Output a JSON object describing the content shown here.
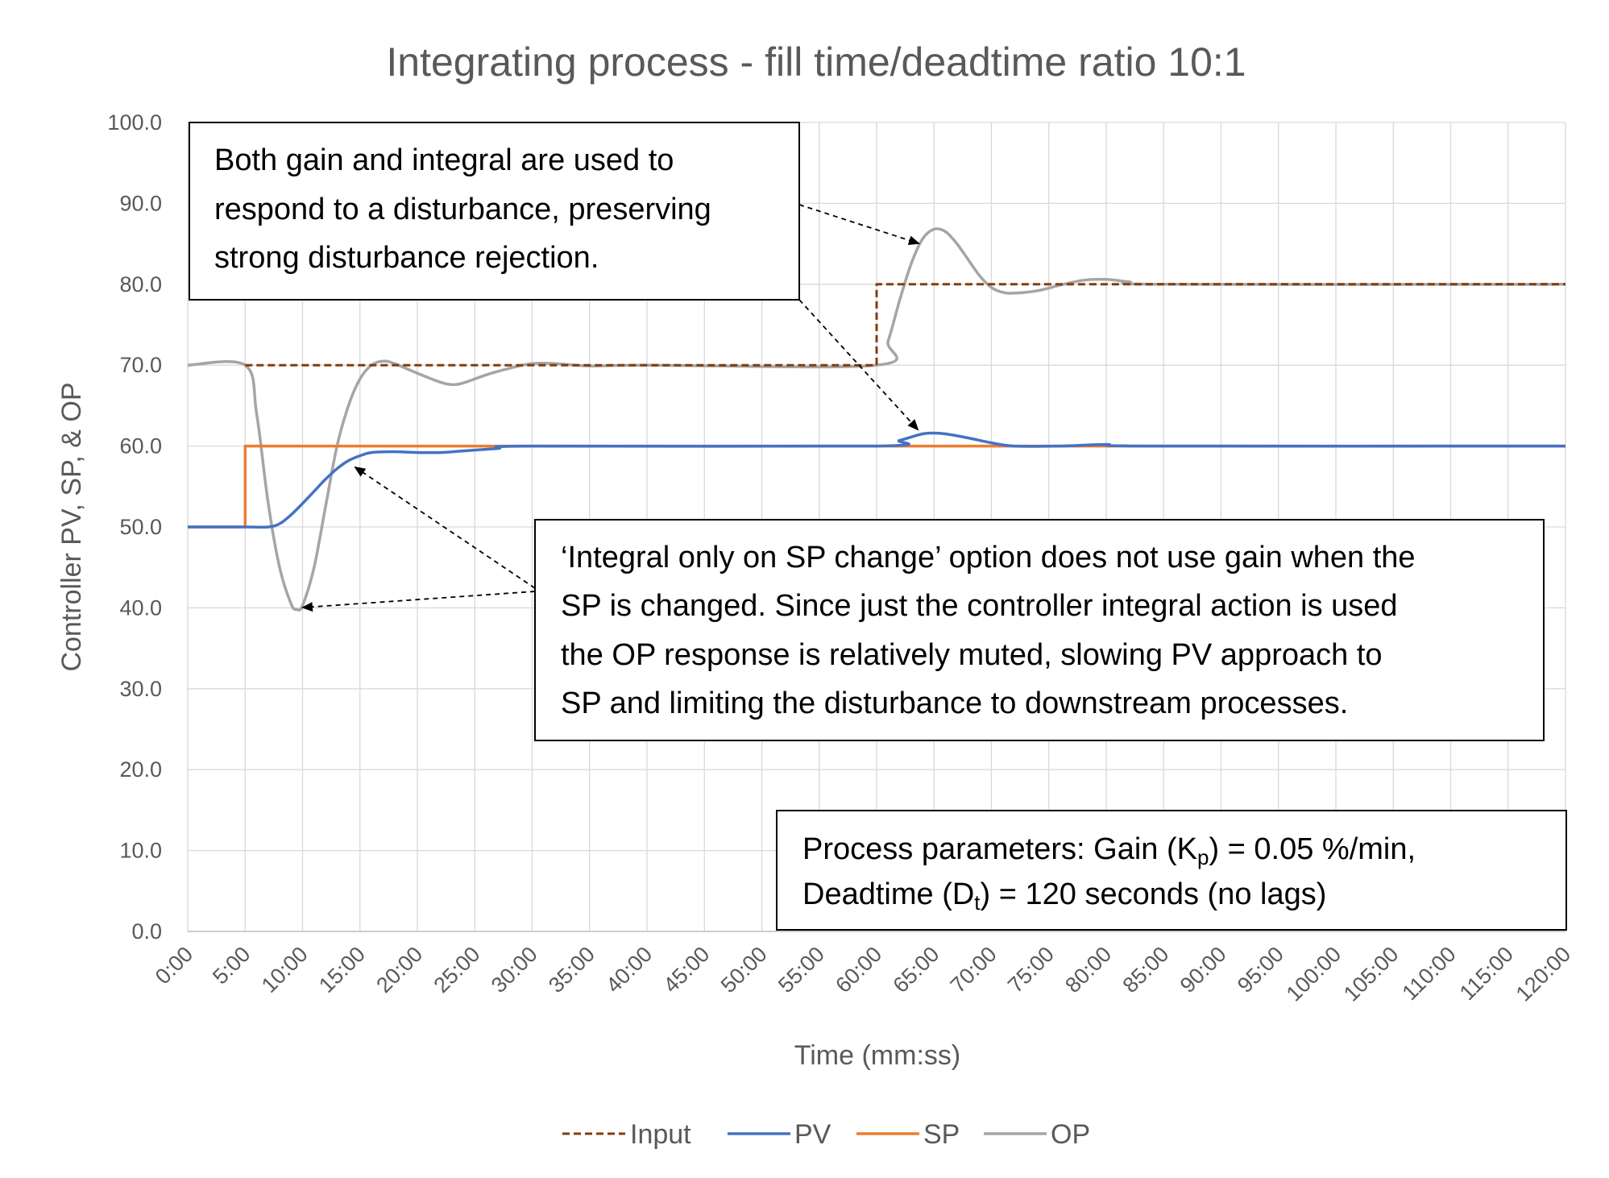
{
  "chart_data": {
    "type": "line",
    "title": "Integrating process - fill time/deadtime ratio 10:1",
    "xlabel": "Time (mm:ss)",
    "ylabel": "Controller PV, SP, & OP",
    "xlim": [
      0,
      120
    ],
    "ylim": [
      0,
      100
    ],
    "y_ticks": [
      "0.0",
      "10.0",
      "20.0",
      "30.0",
      "40.0",
      "50.0",
      "60.0",
      "70.0",
      "80.0",
      "90.0",
      "100.0"
    ],
    "x_tick_values": [
      0,
      5,
      10,
      15,
      20,
      25,
      30,
      35,
      40,
      45,
      50,
      55,
      60,
      65,
      70,
      75,
      80,
      85,
      90,
      95,
      100,
      105,
      110,
      115,
      120
    ],
    "x_ticks": [
      "0:00",
      "5:00",
      "10:00",
      "15:00",
      "20:00",
      "25:00",
      "30:00",
      "35:00",
      "40:00",
      "45:00",
      "50:00",
      "55:00",
      "60:00",
      "65:00",
      "70:00",
      "75:00",
      "80:00",
      "85:00",
      "90:00",
      "95:00",
      "100:00",
      "105:00",
      "110:00",
      "115:00",
      "120:00"
    ],
    "grid": true,
    "legend_position": "bottom",
    "series": [
      {
        "name": "Input",
        "color": "#843c0c",
        "dash": true,
        "points": [
          [
            5,
            70
          ],
          [
            60,
            70
          ],
          [
            60,
            80
          ],
          [
            120,
            80
          ]
        ]
      },
      {
        "name": "PV",
        "color": "#4472c4",
        "dash": false,
        "points": [
          [
            0,
            50
          ],
          [
            5,
            50
          ],
          [
            7,
            50
          ],
          [
            8,
            50.4
          ],
          [
            9,
            51.5
          ],
          [
            10,
            52.9
          ],
          [
            11,
            54.4
          ],
          [
            12,
            55.9
          ],
          [
            13,
            57.2
          ],
          [
            14,
            58.2
          ],
          [
            15,
            58.8
          ],
          [
            16,
            59.2
          ],
          [
            18,
            59.3
          ],
          [
            20,
            59.2
          ],
          [
            22,
            59.2
          ],
          [
            24,
            59.4
          ],
          [
            27,
            59.7
          ],
          [
            30,
            60
          ],
          [
            60,
            60
          ],
          [
            62,
            60.7
          ],
          [
            64,
            61.5
          ],
          [
            65,
            61.6
          ],
          [
            66,
            61.5
          ],
          [
            68,
            61
          ],
          [
            70,
            60.4
          ],
          [
            72,
            60
          ],
          [
            76,
            60
          ],
          [
            80,
            60.2
          ],
          [
            84,
            60
          ],
          [
            120,
            60
          ]
        ]
      },
      {
        "name": "SP",
        "color": "#ed7d31",
        "dash": false,
        "points": [
          [
            0,
            50
          ],
          [
            5,
            50
          ],
          [
            5,
            60
          ],
          [
            120,
            60
          ]
        ]
      },
      {
        "name": "OP",
        "color": "#a5a5a5",
        "dash": false,
        "points": [
          [
            0,
            70
          ],
          [
            5,
            70
          ],
          [
            6,
            64
          ],
          [
            7,
            53
          ],
          [
            8,
            45
          ],
          [
            9,
            40.5
          ],
          [
            9.5,
            39.8
          ],
          [
            10,
            40.3
          ],
          [
            11,
            45
          ],
          [
            12,
            52.5
          ],
          [
            13,
            60
          ],
          [
            14,
            65
          ],
          [
            15,
            68.3
          ],
          [
            16,
            70
          ],
          [
            17,
            70.5
          ],
          [
            18,
            70.2
          ],
          [
            20,
            69
          ],
          [
            22,
            67.9
          ],
          [
            23,
            67.6
          ],
          [
            24,
            67.8
          ],
          [
            26,
            68.8
          ],
          [
            28,
            69.6
          ],
          [
            30,
            70.2
          ],
          [
            32,
            70.2
          ],
          [
            35,
            69.9
          ],
          [
            40,
            70
          ],
          [
            60,
            70
          ],
          [
            61,
            73
          ],
          [
            62,
            78
          ],
          [
            63,
            82.5
          ],
          [
            64,
            85.6
          ],
          [
            65,
            86.8
          ],
          [
            66,
            86.5
          ],
          [
            67,
            85
          ],
          [
            68,
            83
          ],
          [
            69,
            81
          ],
          [
            70,
            79.6
          ],
          [
            71,
            79
          ],
          [
            72,
            78.9
          ],
          [
            74,
            79.2
          ],
          [
            76,
            79.9
          ],
          [
            78,
            80.5
          ],
          [
            80,
            80.6
          ],
          [
            82,
            80.3
          ],
          [
            85,
            80
          ],
          [
            120,
            80
          ]
        ]
      }
    ],
    "annotations": [
      {
        "lines": [
          "Both gain and integral are used to",
          "respond to a disturbance, preserving",
          "strong disturbance rejection."
        ]
      },
      {
        "lines": [
          "‘Integral only on SP change’ option does not use gain when the",
          "SP is changed.  Since just the controller integral action is used",
          "the OP response is relatively muted, slowing PV approach to",
          "SP and limiting the disturbance to downstream processes."
        ]
      },
      {
        "line1_pre": "Process parameters:  Gain (K",
        "line1_sub": "p",
        "line1_post": ") = 0.05 %/min,",
        "line2_pre": "Deadtime (D",
        "line2_sub": "t",
        "line2_post": ") = 120 seconds  (no lags)"
      }
    ]
  }
}
